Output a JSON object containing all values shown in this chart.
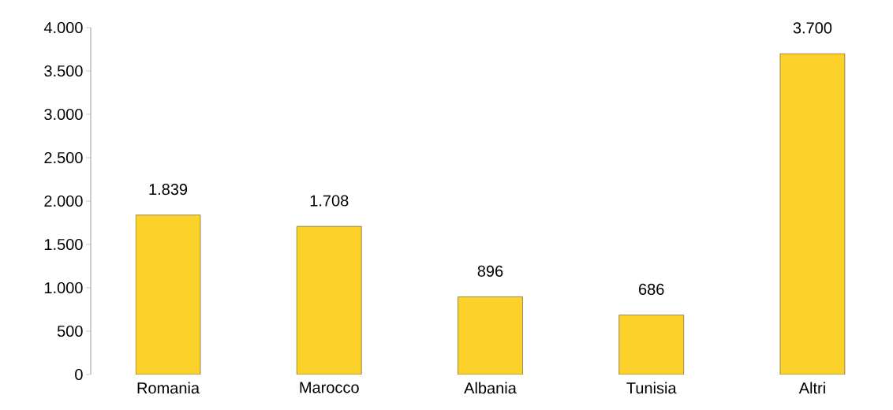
{
  "chart_data": {
    "type": "bar",
    "categories": [
      "Romania",
      "Marocco",
      "Albania",
      "Tunisia",
      "Altri"
    ],
    "values": [
      1839,
      1708,
      896,
      686,
      3700
    ],
    "value_labels": [
      "1.839",
      "1.708",
      "896",
      "686",
      "3.700"
    ],
    "color": "#fcd22a",
    "ylim": [
      0,
      4000
    ],
    "yticks": [
      0,
      500,
      {
        "value": 1000,
        "label": "1.000"
      },
      {
        "value": 1500,
        "label": "1.500"
      },
      {
        "value": 2000,
        "label": "2.000"
      },
      {
        "value": 2500,
        "label": "2.500"
      },
      {
        "value": 3000,
        "label": "3.000"
      },
      {
        "value": 3500,
        "label": "3.500"
      },
      {
        "value": 4000,
        "label": "4.000"
      }
    ],
    "grid": false
  }
}
